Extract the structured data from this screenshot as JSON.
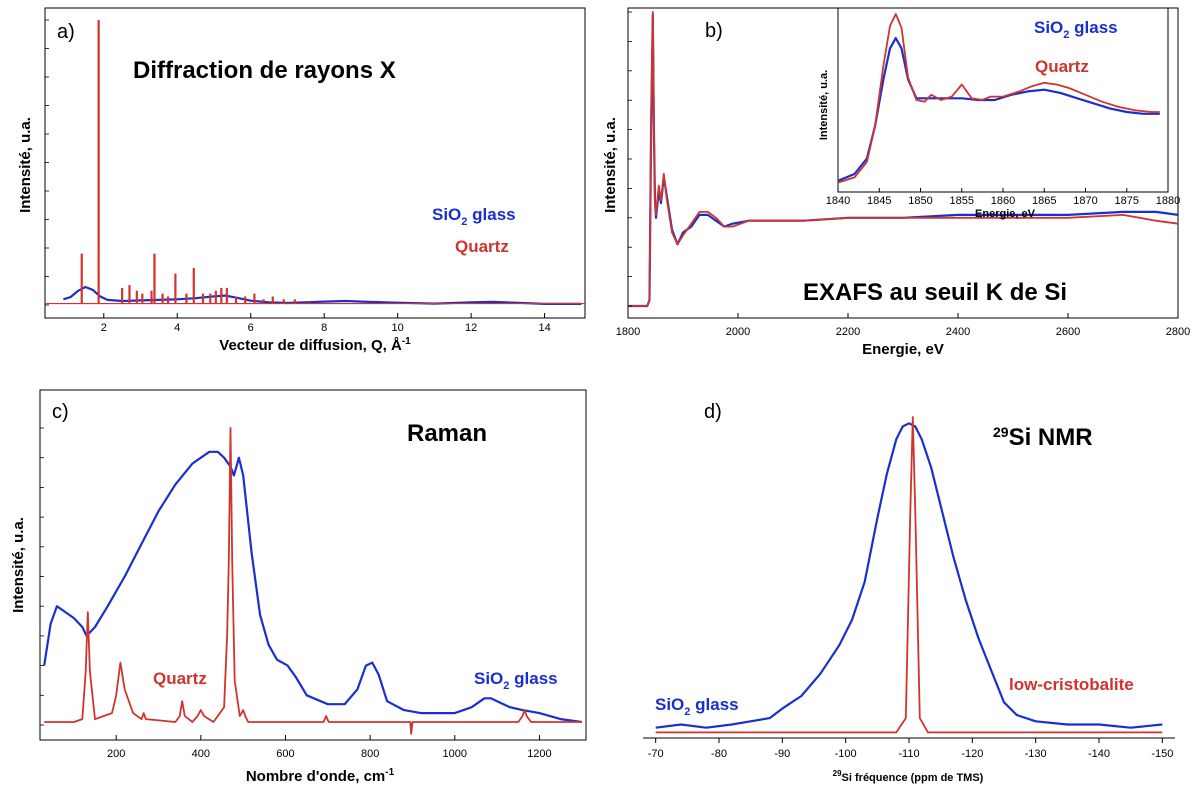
{
  "colors": {
    "glass": "#1a2fd0",
    "crystal": "#d0342c"
  },
  "chart_data": [
    {
      "id": "a",
      "type": "line",
      "panel_label": "a)",
      "title": "Diffraction de rayons X",
      "xlabel_main": "Vecteur de diffusion, Q, Å",
      "xlabel_sup": "-1",
      "ylabel": "Intensité, u.a.",
      "xlim": [
        0.4,
        15.1
      ],
      "ylim": [
        0,
        100
      ],
      "xticks": [
        "2",
        "4",
        "6",
        "8",
        "10",
        "12",
        "14"
      ],
      "xtick_values": [
        2,
        4,
        6,
        8,
        10,
        12,
        14
      ],
      "legend": {
        "glass_main": "SiO",
        "glass_sub": "2",
        "glass_rest": " glass",
        "crystal": "Quartz"
      },
      "series": [
        {
          "name": "SiO2 glass",
          "color": "glass",
          "x": [
            0.9,
            1.1,
            1.3,
            1.5,
            1.7,
            1.9,
            2.1,
            2.5,
            3,
            3.5,
            4,
            4.5,
            5,
            5.3,
            5.6,
            6,
            6.5,
            7,
            7.5,
            8,
            8.6,
            9.2,
            10,
            11,
            12,
            12.6,
            13.2,
            14,
            15
          ],
          "y": [
            2,
            2.8,
            5,
            6.3,
            5.3,
            3,
            1.8,
            1.4,
            1.6,
            1.8,
            2,
            2.4,
            3,
            3.3,
            2.6,
            1.5,
            0.9,
            0.7,
            0.9,
            1.2,
            1.4,
            1.1,
            0.8,
            0.5,
            0.9,
            1.1,
            0.8,
            0.4,
            0.4
          ]
        },
        {
          "name": "Quartz",
          "color": "crystal",
          "type": "stick",
          "baseline": 0.5,
          "x": [
            1.4,
            1.86,
            2.5,
            2.7,
            2.9,
            3.05,
            3.3,
            3.38,
            3.6,
            3.75,
            3.95,
            4.25,
            4.45,
            4.7,
            4.9,
            5.05,
            5.2,
            5.35,
            5.6,
            5.85,
            6.1,
            6.35,
            6.6,
            6.9,
            7.2,
            7.6
          ],
          "y": [
            18,
            100,
            6,
            7,
            5,
            4,
            5,
            18,
            4,
            3,
            11,
            4,
            13,
            4,
            4,
            5,
            6,
            6,
            3,
            3,
            4,
            2,
            3,
            2,
            2,
            1
          ]
        }
      ]
    },
    {
      "id": "b",
      "type": "line",
      "panel_label": "b)",
      "title": "EXAFS au seuil K de Si",
      "xlabel": "Energie, eV",
      "ylabel": "Intensité, u.a.",
      "xlim": [
        1800,
        2800
      ],
      "ylim": [
        0,
        100
      ],
      "xticks": [
        "1800",
        "2000",
        "2200",
        "2400",
        "2600",
        "2800"
      ],
      "xtick_values": [
        1800,
        2000,
        2200,
        2400,
        2600,
        2800
      ],
      "series": [
        {
          "name": "SiO2 glass",
          "color": "glass",
          "x": [
            1800,
            1835,
            1839,
            1842,
            1845,
            1847,
            1849,
            1851,
            1856,
            1860,
            1865,
            1870,
            1880,
            1890,
            1900,
            1915,
            1930,
            1945,
            1960,
            1975,
            1990,
            2020,
            2060,
            2120,
            2200,
            2300,
            2400,
            2500,
            2600,
            2700,
            2760,
            2800
          ],
          "y": [
            0,
            0,
            2,
            60,
            99,
            60,
            36,
            30,
            39,
            35,
            44,
            38,
            26,
            21,
            25,
            27,
            31,
            31,
            29,
            27,
            28,
            29,
            29,
            29,
            30,
            30,
            31,
            31,
            31,
            32,
            32,
            31
          ]
        },
        {
          "name": "Quartz",
          "color": "crystal",
          "x": [
            1800,
            1835,
            1839,
            1842,
            1845,
            1847,
            1849,
            1851,
            1856,
            1860,
            1865,
            1870,
            1880,
            1890,
            1900,
            1915,
            1930,
            1945,
            1960,
            1975,
            1990,
            2020,
            2060,
            2120,
            2200,
            2300,
            2400,
            2500,
            2600,
            2700,
            2760,
            2800
          ],
          "y": [
            0,
            0,
            2,
            62,
            100,
            62,
            34,
            31,
            41,
            36,
            45,
            37,
            25,
            21,
            24,
            28,
            32,
            32,
            30,
            27,
            27,
            29,
            29,
            29,
            30,
            30,
            30,
            30,
            30,
            31,
            29,
            28
          ]
        }
      ]
    },
    {
      "id": "b-inset",
      "type": "line",
      "xlabel": "Energie, eV",
      "ylabel": "Intensité, u.a.",
      "xlim": [
        1840,
        1880
      ],
      "ylim": [
        0,
        100
      ],
      "xticks": [
        "1840",
        "1845",
        "1850",
        "1855",
        "1860",
        "1865",
        "1870",
        "1875",
        "1880"
      ],
      "xtick_values": [
        1840,
        1845,
        1850,
        1855,
        1860,
        1865,
        1870,
        1875,
        1880
      ],
      "legend": {
        "glass_main": "SiO",
        "glass_sub": "2",
        "glass_rest": " glass",
        "crystal": "Quartz"
      },
      "series": [
        {
          "name": "SiO2 glass",
          "color": "glass",
          "x": [
            1840,
            1842,
            1843.5,
            1844.5,
            1845.5,
            1846.3,
            1847,
            1847.7,
            1848.5,
            1849.5,
            1851,
            1853,
            1855,
            1857,
            1859,
            1861,
            1863,
            1865,
            1867,
            1869,
            1871,
            1873,
            1875,
            1877,
            1879
          ],
          "y": [
            3,
            7,
            16,
            35,
            62,
            80,
            86,
            80,
            62,
            51,
            51,
            51,
            51,
            50,
            50,
            53,
            55,
            56,
            54,
            51,
            48,
            45,
            43,
            42,
            42
          ]
        },
        {
          "name": "Quartz",
          "color": "crystal",
          "x": [
            1840,
            1842,
            1843.5,
            1844.5,
            1845.5,
            1846.3,
            1847,
            1847.7,
            1848.5,
            1849.5,
            1850.5,
            1851.3,
            1852.5,
            1853.8,
            1855,
            1856.2,
            1857.5,
            1858.5,
            1860,
            1862,
            1863.5,
            1865,
            1866.5,
            1868,
            1870,
            1872,
            1874,
            1876,
            1878,
            1879
          ],
          "y": [
            2,
            5,
            14,
            35,
            70,
            93,
            100,
            92,
            63,
            50,
            49,
            53,
            50,
            52,
            59,
            51,
            50,
            52,
            52,
            55,
            58,
            60,
            59,
            57,
            53,
            49,
            46,
            44,
            43,
            43
          ]
        }
      ]
    },
    {
      "id": "c",
      "type": "line",
      "panel_label": "c)",
      "title": "Raman",
      "xlabel_main": "Nombre d'onde, cm",
      "xlabel_sup": "-1",
      "ylabel": "Intensité, u.a.",
      "xlim": [
        20,
        1310
      ],
      "ylim": [
        0,
        100
      ],
      "xticks": [
        "200",
        "400",
        "600",
        "800",
        "1000",
        "1200"
      ],
      "xtick_values": [
        200,
        400,
        600,
        800,
        1000,
        1200
      ],
      "legend": {
        "crystal": "Quartz",
        "glass_main": "SiO",
        "glass_sub": "2",
        "glass_rest": " glass"
      },
      "series": [
        {
          "name": "SiO2 glass",
          "color": "glass",
          "x": [
            30,
            45,
            60,
            80,
            100,
            120,
            130,
            150,
            180,
            220,
            260,
            300,
            340,
            380,
            420,
            440,
            455,
            470,
            478,
            490,
            500,
            520,
            540,
            560,
            580,
            605,
            625,
            650,
            700,
            740,
            770,
            790,
            805,
            820,
            840,
            880,
            920,
            960,
            1000,
            1040,
            1070,
            1085,
            1100,
            1130,
            1160,
            1200,
            1250,
            1300
          ],
          "y": [
            20,
            34,
            40,
            38,
            36,
            33,
            30,
            33,
            40,
            50,
            61,
            72,
            81,
            88,
            92,
            92,
            90,
            87,
            84,
            90,
            84,
            58,
            37,
            27,
            22,
            20,
            16,
            10,
            7,
            7,
            12,
            20,
            21,
            17,
            8,
            5,
            4,
            4,
            4,
            6,
            9,
            9,
            8,
            6,
            5,
            4,
            2,
            1
          ]
        },
        {
          "name": "Quartz",
          "color": "crystal",
          "x": [
            30,
            100,
            120,
            128,
            133,
            138,
            150,
            190,
            200,
            210,
            220,
            240,
            260,
            265,
            270,
            340,
            350,
            356,
            362,
            380,
            392,
            400,
            408,
            430,
            455,
            462,
            466,
            470,
            474,
            480,
            492,
            500,
            505,
            512,
            540,
            600,
            690,
            696,
            702,
            800,
            895,
            897,
            900,
            1100,
            1150,
            1160,
            1165,
            1170,
            1180,
            1300
          ],
          "y": [
            1,
            1,
            2,
            18,
            38,
            18,
            2,
            4,
            10,
            21,
            12,
            4,
            2,
            4,
            2,
            1,
            3,
            8,
            3,
            1,
            3,
            5,
            3,
            1,
            6,
            30,
            55,
            100,
            55,
            15,
            3,
            5,
            3,
            1,
            1,
            1,
            1,
            3,
            1,
            1,
            1,
            -3,
            1,
            1,
            1,
            3,
            5,
            3,
            1,
            1
          ]
        }
      ]
    },
    {
      "id": "d",
      "type": "line",
      "panel_label": "d)",
      "title_sup": "29",
      "title_main": "Si NMR",
      "xlabel_sup": "29",
      "xlabel_main": "Si fréquence (ppm de TMS)",
      "xlim": [
        -68,
        -152
      ],
      "ylim": [
        0,
        100
      ],
      "xticks": [
        "-70",
        "-80",
        "-90",
        "-100",
        "-110",
        "-120",
        "-130",
        "-140",
        "-150"
      ],
      "xtick_values": [
        -70,
        -80,
        -90,
        -100,
        -110,
        -120,
        -130,
        -140,
        -150
      ],
      "legend": {
        "glass_text": "SiO",
        "glass_sub": "2",
        "glass_rest": " glass",
        "crystal": "low-cristobalite"
      },
      "series": [
        {
          "name": "SiO2 glass",
          "color": "glass",
          "x": [
            -70,
            -74,
            -78,
            -82,
            -85,
            -88,
            -90,
            -93,
            -96,
            -99,
            -101,
            -103,
            -105,
            -106.5,
            -108,
            -109,
            -110,
            -111,
            -112,
            -113.5,
            -115,
            -117,
            -119,
            -121,
            -123,
            -125,
            -127,
            -130,
            -135,
            -140,
            -145,
            -150
          ],
          "y": [
            2,
            3,
            2,
            3,
            4,
            5,
            8,
            12,
            19,
            28,
            36,
            48,
            68,
            82,
            93,
            97,
            98,
            97,
            93,
            84,
            72,
            56,
            42,
            30,
            20,
            10,
            6,
            4,
            3,
            3,
            2,
            3
          ]
        },
        {
          "name": "low-cristobalite",
          "color": "crystal",
          "x": [
            -70,
            -100,
            -108,
            -109.5,
            -110.2,
            -110.6,
            -111,
            -111.7,
            -113,
            -120,
            -150
          ],
          "y": [
            0.5,
            0.5,
            0.5,
            5,
            70,
            100,
            70,
            5,
            0.5,
            0.5,
            0.5
          ]
        }
      ]
    }
  ]
}
